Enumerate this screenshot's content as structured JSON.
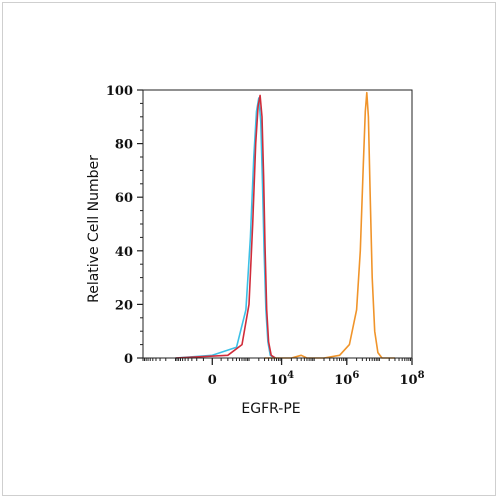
{
  "chart_data": {
    "type": "line",
    "title": "",
    "xlabel": "EGFR-PE",
    "ylabel": "Relative Cell Number",
    "x_scale": "biexponential",
    "xlim_label_range": [
      "-10^4",
      "10^8"
    ],
    "ylim": [
      0,
      100
    ],
    "y_ticks": [
      0,
      20,
      40,
      60,
      80,
      100
    ],
    "x_ticks": [
      {
        "base": "0",
        "exp": ""
      },
      {
        "base": "10",
        "exp": "4"
      },
      {
        "base": "10",
        "exp": "6"
      },
      {
        "base": "10",
        "exp": "8"
      }
    ],
    "legend": "none",
    "grid": false,
    "series": [
      {
        "color": "#3cc0e6",
        "points": [
          [
            -1000,
            0
          ],
          [
            0,
            1
          ],
          [
            400,
            4
          ],
          [
            800,
            18
          ],
          [
            1100,
            45
          ],
          [
            1400,
            75
          ],
          [
            1700,
            92
          ],
          [
            2000,
            97
          ],
          [
            2300,
            88
          ],
          [
            2600,
            65
          ],
          [
            2900,
            40
          ],
          [
            3300,
            18
          ],
          [
            3800,
            6
          ],
          [
            4500,
            1
          ],
          [
            6000,
            0
          ]
        ]
      },
      {
        "color": "#d02c3a",
        "points": [
          [
            -1000,
            0
          ],
          [
            200,
            1
          ],
          [
            600,
            5
          ],
          [
            1000,
            20
          ],
          [
            1300,
            50
          ],
          [
            1600,
            80
          ],
          [
            1900,
            94
          ],
          [
            2200,
            98
          ],
          [
            2500,
            90
          ],
          [
            2800,
            68
          ],
          [
            3100,
            42
          ],
          [
            3500,
            18
          ],
          [
            4000,
            6
          ],
          [
            4800,
            1
          ],
          [
            6500,
            0
          ]
        ]
      },
      {
        "color": "#f0942a",
        "points": [
          [
            3000,
            0
          ],
          [
            20000,
            0
          ],
          [
            40000,
            1
          ],
          [
            60000,
            0
          ],
          [
            200000,
            0
          ],
          [
            600000,
            1
          ],
          [
            1200000,
            5
          ],
          [
            2000000,
            18
          ],
          [
            2600000,
            40
          ],
          [
            3200000,
            72
          ],
          [
            3700000,
            92
          ],
          [
            4100000,
            99
          ],
          [
            4600000,
            90
          ],
          [
            5200000,
            62
          ],
          [
            6000000,
            30
          ],
          [
            7200000,
            10
          ],
          [
            9000000,
            2
          ],
          [
            12000000,
            0
          ],
          [
            30000000,
            0
          ]
        ]
      }
    ]
  }
}
